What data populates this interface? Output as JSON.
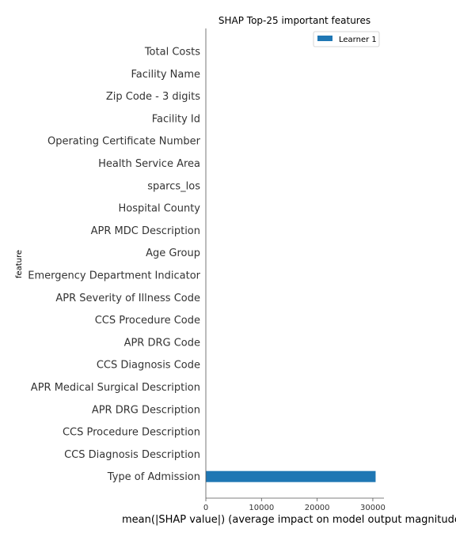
{
  "chart_data": {
    "type": "bar",
    "orientation": "horizontal",
    "title": "SHAP Top-25 important features",
    "xlabel": "mean(|SHAP value|) (average impact on model output magnitude)",
    "ylabel": "feature",
    "categories": [
      "Total Costs",
      "Facility Name",
      "Zip Code - 3 digits",
      "Facility Id",
      "Operating Certificate Number",
      "Health Service Area",
      "sparcs_los",
      "Hospital County",
      "APR MDC Description",
      "Age Group",
      "Emergency Department Indicator",
      "APR Severity of Illness Code",
      "CCS Procedure Code",
      "APR DRG Code",
      "CCS Diagnosis Code",
      "APR Medical Surgical Description",
      "APR DRG Description",
      "CCS Procedure Description",
      "CCS Diagnosis Description",
      "Type of Admission"
    ],
    "series": [
      {
        "name": "Learner 1",
        "color": "#1f77b4",
        "values": [
          0,
          0,
          0,
          0,
          0,
          0,
          0,
          0,
          0,
          0,
          0,
          0,
          0,
          0,
          0,
          0,
          0,
          0,
          0,
          30500
        ]
      }
    ],
    "xlim": [
      0,
      32000
    ],
    "xticks": [
      0,
      10000,
      20000,
      30000
    ],
    "legend_position": "top-right",
    "grid": false
  }
}
